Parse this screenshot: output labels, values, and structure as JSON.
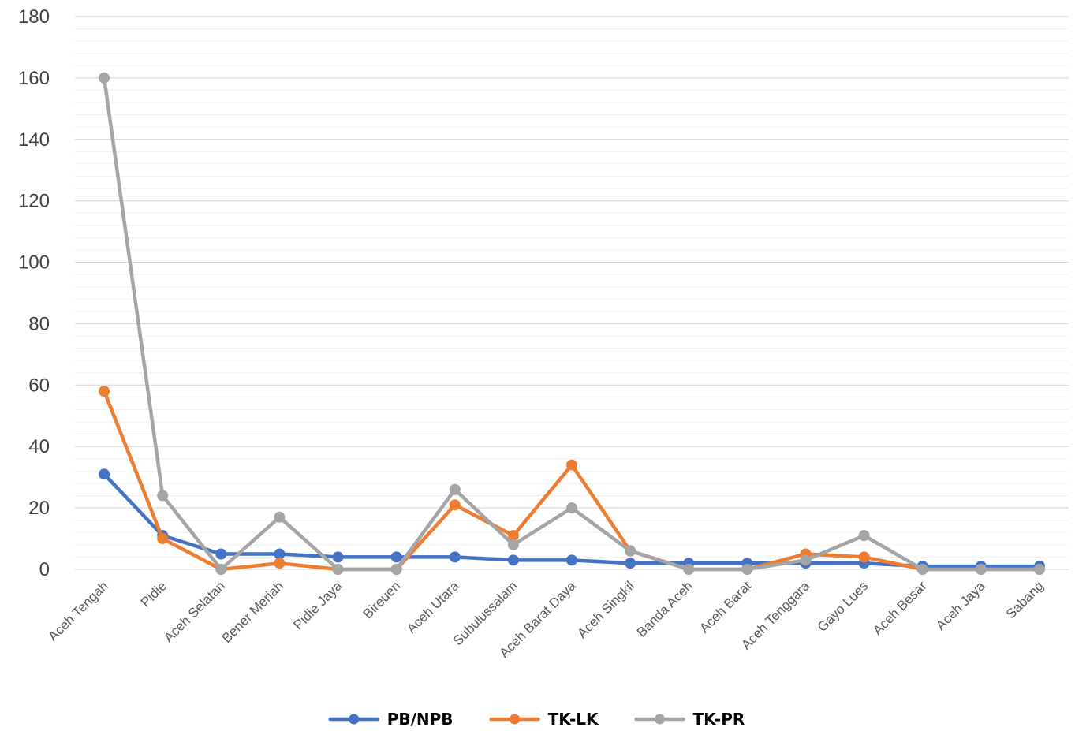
{
  "chart_data": {
    "type": "line",
    "title": "",
    "xlabel": "",
    "ylabel": "",
    "categories": [
      "Aceh Tengah",
      "Pidie",
      "Aceh Selatan",
      "Bener Meriah",
      "Pidie Jaya",
      "Bireuen",
      "Aceh Utara",
      "Subulussalam",
      "Aceh Barat Daya",
      "Aceh Singkil",
      "Banda Aceh",
      "Aceh Barat",
      "Aceh Tenggara",
      "Gayo Lues",
      "Aceh Besar",
      "Aceh Jaya",
      "Sabang"
    ],
    "ylim": [
      0,
      180
    ],
    "yticks": [
      "0",
      "20",
      "40",
      "60",
      "80",
      "100",
      "120",
      "140",
      "160",
      "180"
    ],
    "grid": true,
    "legend_position": "bottom",
    "series": [
      {
        "name": "PB/NPB",
        "color": "#4472C4",
        "values": [
          31,
          11,
          5,
          5,
          4,
          4,
          4,
          3,
          3,
          2,
          2,
          2,
          2,
          2,
          1,
          1,
          1
        ]
      },
      {
        "name": "TK-LK",
        "color": "#ED7D31",
        "values": [
          58,
          10,
          0,
          2,
          0,
          0,
          21,
          11,
          34,
          6,
          0,
          0,
          5,
          4,
          0,
          0,
          0
        ]
      },
      {
        "name": "TK-PR",
        "color": "#A5A5A5",
        "values": [
          160,
          24,
          0,
          17,
          0,
          0,
          26,
          8,
          20,
          6,
          0,
          0,
          3,
          11,
          0,
          0,
          0
        ]
      }
    ]
  }
}
